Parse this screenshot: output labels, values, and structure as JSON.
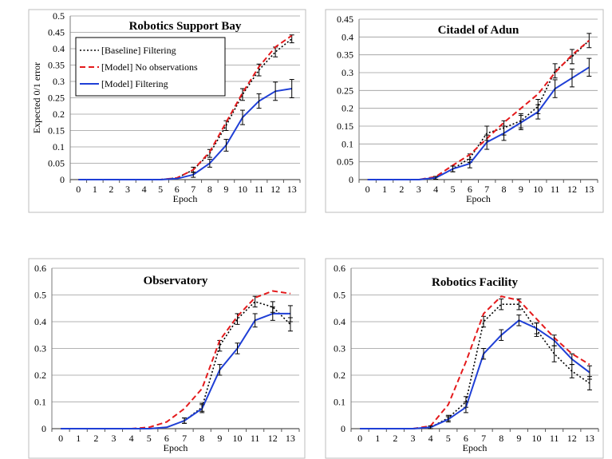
{
  "chart_data": [
    {
      "type": "line",
      "title": "Robotics Support Bay",
      "xlabel": "Epoch",
      "ylabel": "Expected 0/1 error",
      "x": [
        0,
        1,
        2,
        3,
        4,
        5,
        6,
        7,
        8,
        9,
        10,
        11,
        12,
        13
      ],
      "yticks": [
        "0",
        "0.05",
        "0.1",
        "0.15",
        "0.2",
        "0.25",
        "0.3",
        "0.35",
        "0.4",
        "0.45",
        "0.5"
      ],
      "ylim": [
        0,
        0.5
      ],
      "grid": true,
      "legend": "top-left",
      "series": [
        {
          "name": "[Baseline] Filtering",
          "values": [
            0,
            0,
            0,
            0,
            0,
            0,
            0.005,
            0.03,
            0.08,
            0.165,
            0.26,
            0.335,
            0.39,
            0.43
          ],
          "errors": [
            0,
            0,
            0,
            0,
            0,
            0,
            0,
            0.008,
            0.012,
            0.015,
            0.018,
            0.018,
            0.015,
            0.012
          ]
        },
        {
          "name": "[Model] No observations",
          "values": [
            0,
            0,
            0,
            0,
            0,
            0,
            0.005,
            0.03,
            0.085,
            0.175,
            0.265,
            0.345,
            0.405,
            0.44
          ],
          "errors": []
        },
        {
          "name": "[Model] Filtering",
          "values": [
            0,
            0,
            0,
            0,
            0,
            0,
            0.003,
            0.015,
            0.05,
            0.105,
            0.19,
            0.24,
            0.27,
            0.278
          ],
          "errors": [
            0,
            0,
            0,
            0,
            0,
            0,
            0,
            0.008,
            0.012,
            0.018,
            0.022,
            0.022,
            0.028,
            0.028
          ]
        }
      ]
    },
    {
      "type": "line",
      "title": "Citadel of Adun",
      "xlabel": "Epoch",
      "ylabel": "",
      "x": [
        0,
        1,
        2,
        3,
        4,
        5,
        6,
        7,
        8,
        9,
        10,
        11,
        12,
        13
      ],
      "yticks": [
        "0",
        "0.05",
        "0.1",
        "0.15",
        "0.2",
        "0.25",
        "0.3",
        "0.35",
        "0.4",
        "0.45"
      ],
      "ylim": [
        0,
        0.45
      ],
      "grid": true,
      "legend": "",
      "series": [
        {
          "name": "",
          "values": [
            0,
            0,
            0,
            0,
            0.005,
            0.03,
            0.06,
            0.13,
            0.145,
            0.165,
            0.205,
            0.305,
            0.345,
            0.39
          ],
          "errors": [
            0,
            0,
            0,
            0,
            0.004,
            0.008,
            0.012,
            0.02,
            0.02,
            0.02,
            0.02,
            0.02,
            0.02,
            0.02
          ]
        },
        {
          "name": "",
          "values": [
            0,
            0,
            0,
            0,
            0.008,
            0.04,
            0.07,
            0.115,
            0.16,
            0.2,
            0.24,
            0.3,
            0.35,
            0.39
          ],
          "errors": []
        },
        {
          "name": "",
          "values": [
            0,
            0,
            0,
            0,
            0.005,
            0.03,
            0.045,
            0.105,
            0.13,
            0.16,
            0.19,
            0.255,
            0.285,
            0.315
          ],
          "errors": [
            0,
            0,
            0,
            0,
            0.004,
            0.008,
            0.012,
            0.02,
            0.02,
            0.02,
            0.02,
            0.025,
            0.025,
            0.025
          ]
        }
      ]
    },
    {
      "type": "line",
      "title": "Observatory",
      "xlabel": "Epoch",
      "ylabel": "",
      "x": [
        0,
        1,
        2,
        3,
        4,
        5,
        6,
        7,
        8,
        9,
        10,
        11,
        12,
        13
      ],
      "yticks": [
        "0",
        "0.1",
        "0.2",
        "0.3",
        "0.4",
        "0.5",
        "0.6"
      ],
      "ylim": [
        0,
        0.6
      ],
      "grid": true,
      "legend": "",
      "series": [
        {
          "name": "",
          "values": [
            0,
            0,
            0,
            0,
            0,
            0,
            0.005,
            0.03,
            0.08,
            0.31,
            0.41,
            0.475,
            0.455,
            0.39
          ],
          "errors": [
            0,
            0,
            0,
            0,
            0,
            0,
            0,
            0.01,
            0.015,
            0.02,
            0.02,
            0.02,
            0.02,
            0.025
          ]
        },
        {
          "name": "",
          "values": [
            0,
            0,
            0,
            0,
            0,
            0.005,
            0.025,
            0.075,
            0.15,
            0.33,
            0.42,
            0.49,
            0.515,
            0.505
          ],
          "errors": []
        },
        {
          "name": "",
          "values": [
            0,
            0,
            0,
            0,
            0,
            0,
            0.005,
            0.03,
            0.075,
            0.22,
            0.3,
            0.405,
            0.43,
            0.43
          ],
          "errors": [
            0,
            0,
            0,
            0,
            0,
            0,
            0,
            0.01,
            0.015,
            0.02,
            0.02,
            0.025,
            0.025,
            0.03
          ]
        }
      ]
    },
    {
      "type": "line",
      "title": "Robotics Facility",
      "xlabel": "Epoch",
      "ylabel": "",
      "x": [
        0,
        1,
        2,
        3,
        4,
        5,
        6,
        7,
        8,
        9,
        10,
        11,
        12,
        13
      ],
      "yticks": [
        "0",
        "0.1",
        "0.2",
        "0.3",
        "0.4",
        "0.5",
        "0.6"
      ],
      "ylim": [
        0,
        0.6
      ],
      "grid": true,
      "legend": "",
      "series": [
        {
          "name": "",
          "values": [
            0,
            0,
            0,
            0,
            0.005,
            0.04,
            0.1,
            0.4,
            0.465,
            0.465,
            0.37,
            0.28,
            0.215,
            0.17
          ],
          "errors": [
            0,
            0,
            0,
            0,
            0.005,
            0.01,
            0.02,
            0.02,
            0.02,
            0.02,
            0.025,
            0.03,
            0.025,
            0.025
          ]
        },
        {
          "name": "",
          "values": [
            0,
            0,
            0,
            0,
            0.01,
            0.09,
            0.25,
            0.43,
            0.495,
            0.48,
            0.41,
            0.34,
            0.28,
            0.24
          ],
          "errors": []
        },
        {
          "name": "",
          "values": [
            0,
            0,
            0,
            0,
            0.005,
            0.035,
            0.08,
            0.28,
            0.35,
            0.405,
            0.375,
            0.33,
            0.26,
            0.21
          ],
          "errors": [
            0,
            0,
            0,
            0,
            0.005,
            0.01,
            0.02,
            0.02,
            0.02,
            0.02,
            0.02,
            0.02,
            0.02,
            0.025
          ]
        }
      ]
    }
  ],
  "series_styles": [
    {
      "color": "#000000",
      "dash": "2,2.5",
      "width": 1.6
    },
    {
      "color": "#e41a1c",
      "dash": "7,4",
      "width": 2
    },
    {
      "color": "#1f3fd6",
      "dash": "",
      "width": 2
    }
  ]
}
